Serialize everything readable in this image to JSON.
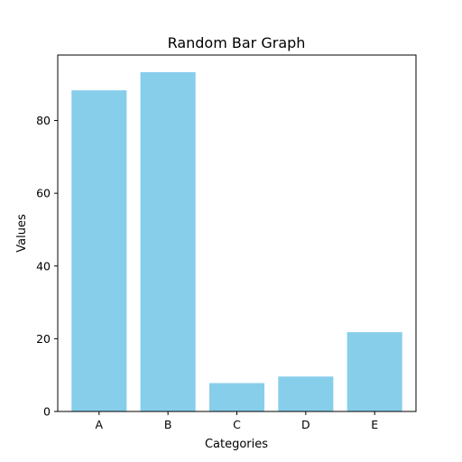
{
  "chart_data": {
    "type": "bar",
    "title": "Random Bar Graph",
    "xlabel": "Categories",
    "ylabel": "Values",
    "categories": [
      "A",
      "B",
      "C",
      "D",
      "E"
    ],
    "values": [
      88.3,
      93.3,
      7.8,
      9.6,
      21.8
    ],
    "ylim": [
      0,
      98
    ],
    "yticks": [
      0,
      20,
      40,
      60,
      80
    ],
    "grid": false,
    "bar_color": "#87CEEB"
  }
}
